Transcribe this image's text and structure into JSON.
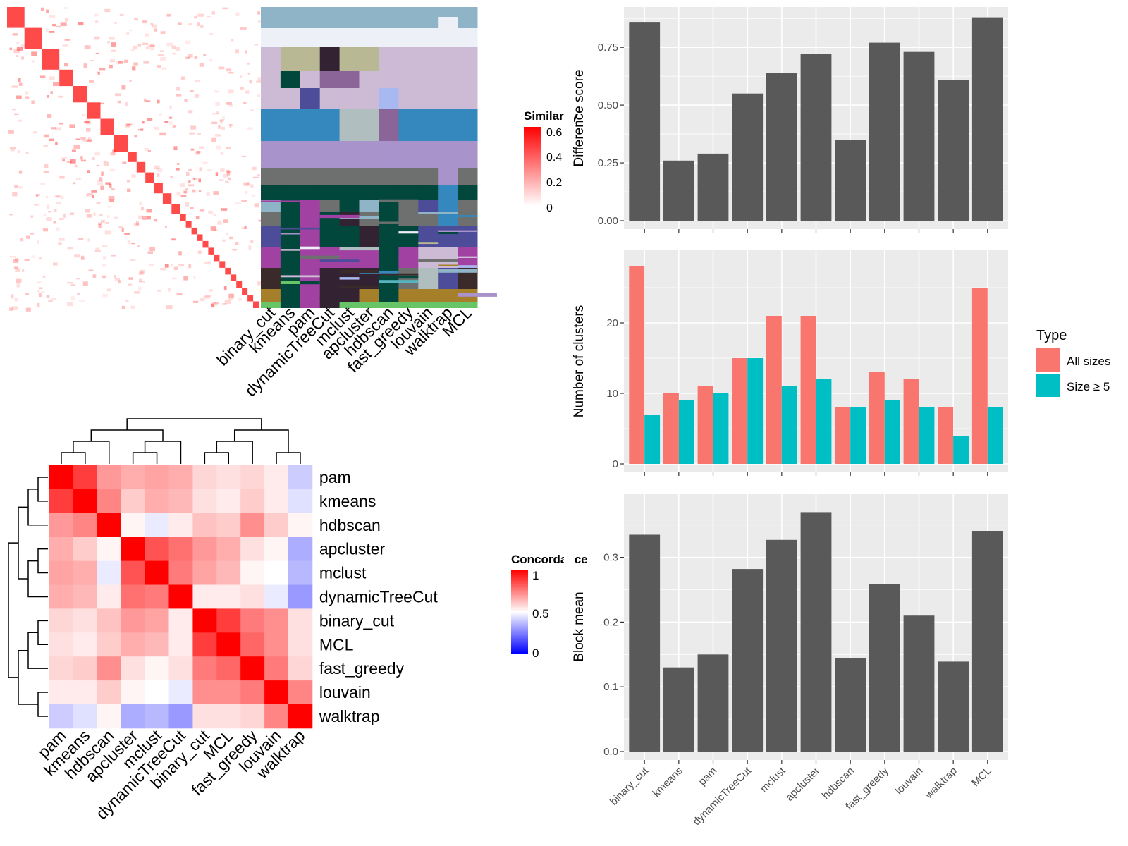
{
  "methods": [
    "binary_cut",
    "kmeans",
    "pam",
    "dynamicTreeCut",
    "mclust",
    "apcluster",
    "hdbscan",
    "fast_greedy",
    "louvain",
    "walktrap",
    "MCL"
  ],
  "legends": {
    "similarity": {
      "title": "Similarity",
      "ticks": [
        "0",
        "0.2",
        "0.4",
        "0.6"
      ],
      "colors": [
        "#ffffff",
        "#ff0000"
      ]
    },
    "concordance": {
      "title": "Concordance",
      "ticks": [
        "0",
        "0.5",
        "1"
      ],
      "colors": [
        "#0000ff",
        "#ffffff",
        "#ff0000"
      ]
    },
    "type": {
      "title": "Type",
      "items": [
        "All sizes",
        "Size ≥ 5"
      ],
      "colors": [
        "#f8766d",
        "#00bfc4"
      ]
    }
  },
  "chart_data": [
    {
      "type": "heatmap",
      "name": "similarity-matrix",
      "color_range": [
        0,
        0.6
      ],
      "diagonal_blocks": 28
    },
    {
      "type": "heatmap",
      "name": "cluster-assignment-matrix",
      "categories": [
        "binary_cut",
        "kmeans",
        "pam",
        "dynamicTreeCut",
        "mclust",
        "apcluster",
        "hdbscan",
        "fast_greedy",
        "louvain",
        "walktrap",
        "MCL"
      ]
    },
    {
      "type": "heatmap",
      "name": "concordance-matrix",
      "order": [
        "pam",
        "kmeans",
        "hdbscan",
        "apcluster",
        "mclust",
        "dynamicTreeCut",
        "binary_cut",
        "MCL",
        "fast_greedy",
        "louvain",
        "walktrap"
      ],
      "values": [
        [
          1.0,
          0.88,
          0.7,
          0.66,
          0.68,
          0.66,
          0.58,
          0.56,
          0.58,
          0.54,
          0.4
        ],
        [
          0.88,
          1.0,
          0.74,
          0.6,
          0.66,
          0.64,
          0.56,
          0.54,
          0.6,
          0.54,
          0.44
        ],
        [
          0.7,
          0.74,
          1.0,
          0.52,
          0.46,
          0.54,
          0.62,
          0.6,
          0.72,
          0.6,
          0.52
        ],
        [
          0.66,
          0.6,
          0.52,
          1.0,
          0.84,
          0.78,
          0.7,
          0.66,
          0.56,
          0.52,
          0.34
        ],
        [
          0.68,
          0.66,
          0.46,
          0.84,
          1.0,
          0.76,
          0.68,
          0.64,
          0.52,
          0.5,
          0.36
        ],
        [
          0.66,
          0.64,
          0.54,
          0.78,
          0.76,
          1.0,
          0.54,
          0.54,
          0.56,
          0.46,
          0.3
        ],
        [
          0.58,
          0.56,
          0.62,
          0.7,
          0.68,
          0.54,
          1.0,
          0.88,
          0.76,
          0.72,
          0.56
        ],
        [
          0.56,
          0.54,
          0.6,
          0.66,
          0.64,
          0.54,
          0.88,
          1.0,
          0.8,
          0.72,
          0.56
        ],
        [
          0.58,
          0.6,
          0.72,
          0.56,
          0.52,
          0.56,
          0.76,
          0.8,
          1.0,
          0.76,
          0.58
        ],
        [
          0.54,
          0.54,
          0.6,
          0.52,
          0.5,
          0.46,
          0.72,
          0.72,
          0.76,
          1.0,
          0.74
        ],
        [
          0.4,
          0.44,
          0.52,
          0.34,
          0.36,
          0.3,
          0.56,
          0.56,
          0.58,
          0.74,
          1.0
        ]
      ],
      "color_range": [
        0,
        1
      ]
    },
    {
      "type": "bar",
      "name": "difference-score",
      "categories": [
        "binary_cut",
        "kmeans",
        "pam",
        "dynamicTreeCut",
        "mclust",
        "apcluster",
        "hdbscan",
        "fast_greedy",
        "louvain",
        "walktrap",
        "MCL"
      ],
      "values": [
        0.86,
        0.26,
        0.29,
        0.55,
        0.64,
        0.72,
        0.35,
        0.77,
        0.73,
        0.61,
        0.88
      ],
      "ylabel": "Difference score",
      "ylim": [
        0,
        0.9
      ],
      "yticks": [
        "0.00",
        "0.25",
        "0.50",
        "0.75"
      ],
      "ytick_values": [
        0,
        0.25,
        0.5,
        0.75
      ]
    },
    {
      "type": "bar",
      "name": "number-of-clusters",
      "categories": [
        "binary_cut",
        "kmeans",
        "pam",
        "dynamicTreeCut",
        "mclust",
        "apcluster",
        "hdbscan",
        "fast_greedy",
        "louvain",
        "walktrap",
        "MCL"
      ],
      "series": [
        {
          "name": "All sizes",
          "values": [
            28,
            10,
            11,
            15,
            21,
            21,
            8,
            13,
            12,
            8,
            25
          ]
        },
        {
          "name": "Size ≥ 5",
          "values": [
            7,
            9,
            10,
            15,
            11,
            12,
            8,
            9,
            8,
            4,
            8
          ]
        }
      ],
      "ylabel": "Number of clusters",
      "ylim": [
        0,
        29.5
      ],
      "yticks": [
        "0",
        "10",
        "20"
      ],
      "ytick_values": [
        0,
        10,
        20
      ],
      "legend": "right"
    },
    {
      "type": "bar",
      "name": "block-mean",
      "categories": [
        "binary_cut",
        "kmeans",
        "pam",
        "dynamicTreeCut",
        "mclust",
        "apcluster",
        "hdbscan",
        "fast_greedy",
        "louvain",
        "walktrap",
        "MCL"
      ],
      "values": [
        0.335,
        0.13,
        0.15,
        0.282,
        0.327,
        0.37,
        0.144,
        0.259,
        0.21,
        0.139,
        0.341
      ],
      "ylabel": "Block mean",
      "ylim": [
        0,
        0.39
      ],
      "yticks": [
        "0.0",
        "0.1",
        "0.2",
        "0.3"
      ],
      "ytick_values": [
        0,
        0.1,
        0.2,
        0.3
      ]
    }
  ]
}
